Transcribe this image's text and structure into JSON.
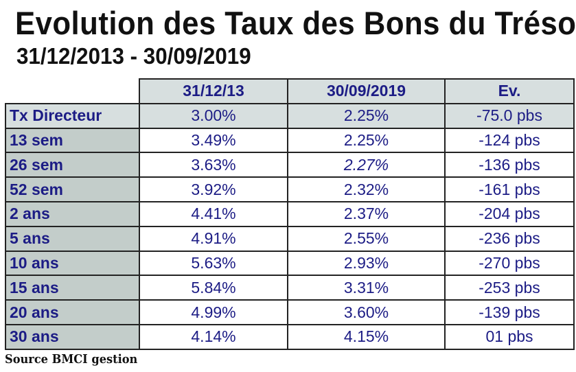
{
  "title": "Evolution des Taux des Bons du Trésor",
  "subtitle": "31/12/2013 - 30/09/2019",
  "table": {
    "headers": [
      "",
      "31/12/13",
      "30/09/2019",
      "Ev."
    ],
    "rows": [
      {
        "label": "Tx  Directeur",
        "v1": "3.00%",
        "v2": "2.25%",
        "ev": "-75.0 pbs"
      },
      {
        "label": "13 sem",
        "v1": "3.49%",
        "v2": "2.25%",
        "ev": "-124 pbs"
      },
      {
        "label": "26 sem",
        "v1": "3.63%",
        "v2": "2.27%",
        "ev": "-136 pbs"
      },
      {
        "label": "52 sem",
        "v1": "3.92%",
        "v2": "2.32%",
        "ev": "-161 pbs"
      },
      {
        "label": "2 ans",
        "v1": "4.41%",
        "v2": "2.37%",
        "ev": "-204 pbs"
      },
      {
        "label": "5 ans",
        "v1": "4.91%",
        "v2": "2.55%",
        "ev": "-236 pbs"
      },
      {
        "label": "10 ans",
        "v1": "5.63%",
        "v2": "2.93%",
        "ev": "-270 pbs"
      },
      {
        "label": "15 ans",
        "v1": "5.84%",
        "v2": "3.31%",
        "ev": "-253 pbs"
      },
      {
        "label": "20 ans",
        "v1": "4.99%",
        "v2": "3.60%",
        "ev": "-139 pbs"
      },
      {
        "label": "30 ans",
        "v1": "4.14%",
        "v2": "4.15%",
        "ev": "01  pbs"
      }
    ]
  },
  "source": "Source BMCI gestion",
  "colors": {
    "text": "#1c1c85",
    "header_bg": "#d7dfdf",
    "label_bg": "#c3cdca"
  }
}
